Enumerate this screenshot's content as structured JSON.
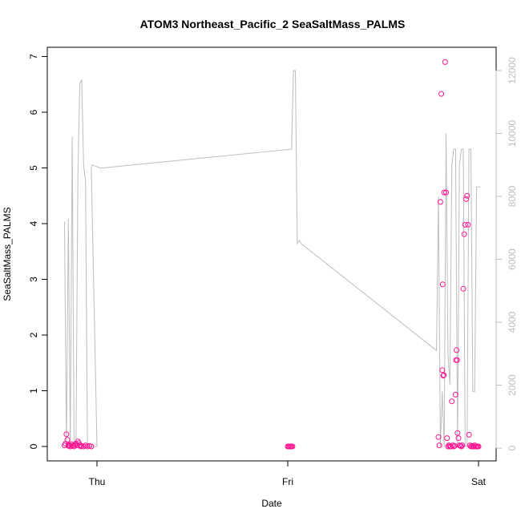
{
  "chart_data": {
    "type": "scatter",
    "title": "ATOM3 Northeast_Pacific_2 SeaSaltMass_PALMS",
    "xlabel": "Date",
    "ylabel": "SeaSaltMass_PALMS",
    "x_ticks": [
      {
        "label": "Thu",
        "value": 0
      },
      {
        "label": "Fri",
        "value": 1
      },
      {
        "label": "Sat",
        "value": 2
      }
    ],
    "xlim": [
      -0.2,
      2.05
    ],
    "y_left": {
      "ticks": [
        0,
        1,
        2,
        3,
        4,
        5,
        6,
        7
      ],
      "ylim": [
        0,
        7.2
      ]
    },
    "y_right": {
      "ticks": [
        0,
        2000,
        4000,
        6000,
        8000,
        10000,
        12000
      ],
      "ylim": [
        0,
        12500
      ],
      "color": "#bebebe"
    },
    "grid": false,
    "series": [
      {
        "role": "points",
        "axis": "left",
        "marker": "open-circle",
        "color": "#ff1493",
        "x": [
          -0.17,
          -0.165,
          -0.16,
          -0.155,
          -0.15,
          -0.15,
          -0.145,
          -0.14,
          -0.135,
          -0.13,
          -0.125,
          -0.12,
          -0.115,
          -0.11,
          -0.105,
          -0.1,
          -0.095,
          -0.09,
          -0.085,
          -0.08,
          -0.07,
          -0.06,
          -0.05,
          -0.04,
          -0.03,
          1.0,
          1.005,
          1.01,
          1.015,
          1.02,
          1.025,
          1.79,
          1.795,
          1.8,
          1.805,
          1.81,
          1.812,
          1.815,
          1.818,
          1.82,
          1.825,
          1.83,
          1.835,
          1.84,
          1.845,
          1.85,
          1.855,
          1.86,
          1.865,
          1.87,
          1.875,
          1.88,
          1.882,
          1.885,
          1.888,
          1.89,
          1.895,
          1.9,
          1.905,
          1.91,
          1.915,
          1.92,
          1.925,
          1.93,
          1.935,
          1.94,
          1.945,
          1.95,
          1.955,
          1.96,
          1.965,
          1.97,
          1.975,
          1.98,
          1.985,
          1.99,
          1.995,
          2.0
        ],
        "y": [
          0.02,
          0.05,
          0.22,
          0.12,
          0.03,
          0.01,
          0.02,
          0.0,
          0.04,
          0.01,
          0.02,
          0.0,
          0.03,
          0.05,
          0.02,
          0.09,
          0.06,
          0.02,
          0.0,
          0.01,
          0.0,
          0.02,
          0.0,
          0.01,
          0.0,
          0.0,
          0.0,
          0.0,
          0.0,
          0.0,
          0.0,
          0.17,
          0.02,
          4.39,
          6.33,
          1.37,
          2.91,
          1.27,
          1.28,
          4.56,
          6.9,
          4.56,
          0.15,
          0.0,
          0.02,
          0.0,
          0.0,
          0.81,
          0.02,
          0.0,
          0.01,
          0.93,
          1.55,
          1.73,
          1.55,
          0.24,
          0.15,
          0.02,
          0.01,
          0.0,
          0.02,
          2.83,
          3.81,
          3.98,
          4.44,
          4.5,
          3.98,
          0.21,
          0.02,
          0.0,
          0.01,
          0.0,
          0.0,
          0.02,
          0.0,
          0.0,
          0.0,
          0.0
        ]
      },
      {
        "role": "line",
        "axis": "right",
        "color": "#bebebe",
        "x": [
          -0.17,
          -0.16,
          -0.15,
          -0.14,
          -0.13,
          -0.12,
          -0.11,
          -0.1,
          -0.09,
          -0.08,
          -0.07,
          -0.06,
          -0.05,
          -0.04,
          -0.03,
          -0.02,
          -0.01,
          0.0,
          -0.03,
          -0.025,
          0.02,
          1.02,
          1.03,
          1.04,
          1.05,
          1.06,
          1.07,
          1.78,
          1.79,
          1.8,
          1.81,
          1.82,
          1.83,
          1.84,
          1.85,
          1.86,
          1.87,
          1.88,
          1.89,
          1.9,
          1.91,
          1.92,
          1.93,
          1.94,
          1.95,
          1.96,
          1.97,
          1.98,
          1.99,
          2.0,
          2.01
        ],
        "y": [
          7200,
          50,
          7300,
          50,
          9900,
          50,
          50,
          8700,
          11600,
          11700,
          9000,
          8500,
          50,
          50,
          50,
          50,
          50,
          50,
          8900,
          9000,
          8900,
          9500,
          12000,
          12000,
          6500,
          6600,
          6500,
          3100,
          8000,
          50,
          1800,
          50,
          10000,
          3000,
          2000,
          9000,
          9500,
          9500,
          50,
          9000,
          9500,
          9500,
          50,
          50,
          9500,
          9500,
          1800,
          1800,
          8300,
          8300,
          8300
        ]
      }
    ]
  }
}
